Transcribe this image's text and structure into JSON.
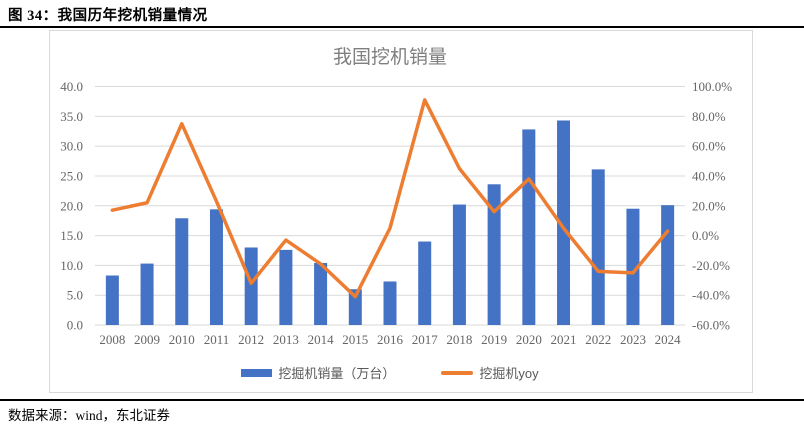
{
  "header": {
    "title": "图 34：我国历年挖机销量情况"
  },
  "chart": {
    "title": "我国挖机销量"
  },
  "legend": [
    {
      "label": "挖掘机销量（万台）",
      "type": "bar",
      "color": "#4472C4"
    },
    {
      "label": "挖掘机yoy",
      "type": "line",
      "color": "#ED7D31"
    }
  ],
  "footer": {
    "source": "数据来源：wind，东北证券"
  },
  "colors": {
    "bar": "#4472C4",
    "line": "#ED7D31",
    "grid": "#d9d9d9",
    "axis_text": "#666666",
    "title_text": "#7f7f7f"
  },
  "chart_data": {
    "type": "bar",
    "title": "我国挖机销量",
    "categories": [
      "2008",
      "2009",
      "2010",
      "2011",
      "2012",
      "2013",
      "2014",
      "2015",
      "2016",
      "2017",
      "2018",
      "2019",
      "2020",
      "2021",
      "2022",
      "2023",
      "2024"
    ],
    "series": [
      {
        "name": "挖掘机销量（万台）",
        "type": "bar",
        "axis": "left",
        "color": "#4472C4",
        "values": [
          8.3,
          10.3,
          17.9,
          19.4,
          13.0,
          12.6,
          10.4,
          6.0,
          7.3,
          14.0,
          20.2,
          23.6,
          32.8,
          34.3,
          26.1,
          19.5,
          20.1
        ]
      },
      {
        "name": "挖掘机yoy",
        "type": "line",
        "axis": "right",
        "unit": "%",
        "color": "#ED7D31",
        "values": [
          17,
          22,
          75,
          23,
          -32,
          -3,
          -19,
          -41,
          5,
          91,
          45,
          16,
          38,
          5,
          -24,
          -25,
          3
        ]
      }
    ],
    "left_axis": {
      "min": 0,
      "max": 40,
      "step": 5,
      "ticks": [
        "0.0",
        "5.0",
        "10.0",
        "15.0",
        "20.0",
        "25.0",
        "30.0",
        "35.0",
        "40.0"
      ]
    },
    "right_axis": {
      "min": -60,
      "max": 100,
      "step": 20,
      "ticks": [
        "-60.0%",
        "-40.0%",
        "-20.0%",
        "0.0%",
        "20.0%",
        "40.0%",
        "60.0%",
        "80.0%",
        "100.0%"
      ]
    },
    "grid": true,
    "legend_position": "bottom"
  }
}
